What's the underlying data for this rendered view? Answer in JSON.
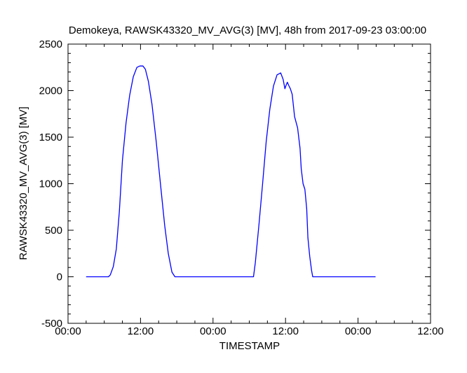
{
  "chart_data": {
    "type": "line",
    "title": "Demokeya, RAWSK43320_MV_AVG(3) [MV], 48h from  2017-09-23 03:00:00",
    "xlabel": "TIMESTAMP",
    "ylabel": "RAWSK43320_MV_AVG(3) [MV]",
    "xlim": [
      0,
      60
    ],
    "ylim": [
      -500,
      2500
    ],
    "x_tick_values": [
      0,
      12,
      24,
      36,
      48,
      60
    ],
    "x_tick_labels": [
      "00:00",
      "12:00",
      "00:00",
      "12:00",
      "00:00",
      "12:00"
    ],
    "y_tick_values": [
      -500,
      0,
      500,
      1000,
      1500,
      2000,
      2500
    ],
    "y_tick_labels": [
      "-500",
      "0",
      "500",
      "1000",
      "1500",
      "2000",
      "2500"
    ],
    "x_unit": "hours from first 00:00 tick",
    "grid": false,
    "line_color": "#0000ff",
    "series": [
      {
        "x": [
          3.0,
          6.7,
          7.0,
          7.5,
          8.0,
          8.5,
          9.0,
          9.6,
          10.2,
          10.8,
          11.4,
          11.9,
          12.4,
          12.8,
          13.3,
          13.9,
          14.6,
          15.3,
          16.0,
          16.6,
          17.2,
          17.7,
          18.3,
          18.7,
          19.2,
          20.0,
          30.7,
          31.0,
          31.6,
          32.2,
          32.8,
          33.4,
          34.0,
          34.6,
          35.2,
          35.6,
          35.9,
          36.1,
          36.3,
          36.5,
          36.8,
          37.1,
          37.5,
          38.0,
          38.4,
          38.6,
          38.9,
          39.2,
          39.5,
          39.7,
          40.0,
          40.3,
          40.5,
          40.8,
          41.1,
          41.4,
          41.7,
          42.4,
          50.9
        ],
        "values": [
          0,
          0,
          20,
          110,
          300,
          700,
          1250,
          1650,
          1950,
          2150,
          2250,
          2265,
          2265,
          2230,
          2100,
          1850,
          1450,
          1000,
          550,
          250,
          50,
          0,
          0,
          0,
          0,
          0,
          0,
          150,
          560,
          1000,
          1450,
          1800,
          2050,
          2170,
          2190,
          2120,
          2020,
          2060,
          2090,
          2060,
          2020,
          1960,
          1720,
          1600,
          1380,
          1160,
          1000,
          940,
          730,
          420,
          220,
          70,
          0,
          0,
          0,
          0,
          0,
          0,
          0
        ]
      }
    ]
  }
}
